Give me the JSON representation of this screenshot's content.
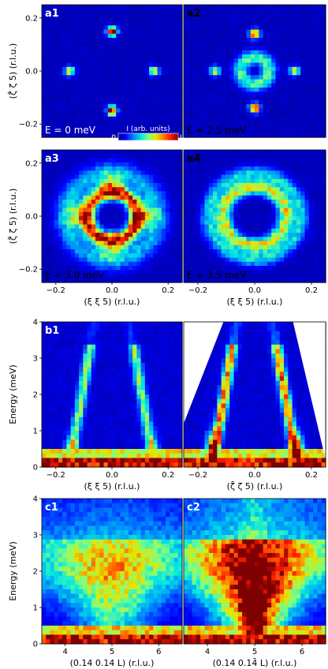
{
  "colors": {
    "cmap": [
      "#00007f",
      "#0000ff",
      "#0080ff",
      "#00e5e5",
      "#7fff7f",
      "#e5e500",
      "#ff8000",
      "#ff1a00",
      "#7f0000"
    ]
  },
  "colorbar": {
    "title": "I (arb. units)",
    "min_label": "0",
    "max_label": "I",
    "max_sub": "max"
  },
  "chart_data": [
    {
      "id": "a1",
      "type": "heatmap",
      "label": "a1",
      "energy_text": "E = 0 meV",
      "xlabel": "",
      "ylabel": "(ζ̄ ζ 5) (r.l.u.)",
      "xlim": [
        -0.25,
        0.25
      ],
      "ylim": [
        -0.25,
        0.25
      ],
      "xticks": [],
      "yticks": [
        -0.2,
        0.0,
        0.2
      ],
      "features": [
        {
          "x": 0.0,
          "y": 0.15,
          "intensity": 1.0
        },
        {
          "x": 0.0,
          "y": -0.15,
          "intensity": 1.0
        },
        {
          "x": -0.15,
          "y": 0.0,
          "intensity": 0.6
        },
        {
          "x": 0.15,
          "y": 0.0,
          "intensity": 0.6
        }
      ]
    },
    {
      "id": "a2",
      "type": "heatmap",
      "label": "a2",
      "energy_text": "E = 2.5 meV",
      "xlabel": "",
      "ylabel": "",
      "xlim": [
        -0.25,
        0.25
      ],
      "ylim": [
        -0.25,
        0.25
      ],
      "xticks": [],
      "yticks": [],
      "features": [
        {
          "x": 0.0,
          "y": 0.14,
          "intensity": 0.9
        },
        {
          "x": 0.0,
          "y": -0.14,
          "intensity": 0.9
        },
        {
          "x": -0.14,
          "y": 0.0,
          "intensity": 0.6
        },
        {
          "x": 0.14,
          "y": 0.0,
          "intensity": 0.6
        },
        {
          "ring": 0.05,
          "intensity": 0.4
        }
      ]
    },
    {
      "id": "a3",
      "type": "heatmap",
      "label": "a3",
      "energy_text": "E = 3.0 meV",
      "xlabel": "(ξ ξ 5) (r.l.u.)",
      "ylabel": "(ζ̄ ζ 5) (r.l.u.)",
      "xlim": [
        -0.25,
        0.25
      ],
      "ylim": [
        -0.25,
        0.25
      ],
      "xticks": [
        -0.2,
        0.0,
        0.2
      ],
      "yticks": [
        -0.2,
        0.0,
        0.2
      ],
      "features": [
        {
          "ring": 0.09,
          "intensity": 0.8
        }
      ]
    },
    {
      "id": "a4",
      "type": "heatmap",
      "label": "a4",
      "energy_text": "E = 3.5 meV",
      "xlabel": "(ξ ξ 5) (r.l.u.)",
      "ylabel": "",
      "xlim": [
        -0.25,
        0.25
      ],
      "ylim": [
        -0.25,
        0.25
      ],
      "xticks": [
        -0.2,
        0.0,
        0.2
      ],
      "yticks": [],
      "features": [
        {
          "ring": 0.11,
          "intensity": 0.55
        }
      ]
    },
    {
      "id": "b1",
      "type": "heatmap",
      "label": "b1",
      "xlabel": "(ξ ξ 5) (r.l.u.)",
      "ylabel": "Energy (meV)",
      "xlim": [
        -0.25,
        0.25
      ],
      "ylim": [
        0,
        4
      ],
      "xticks": [
        -0.2,
        0.0,
        0.2
      ],
      "yticks": [
        0,
        1,
        2,
        3,
        4
      ],
      "dispersion": {
        "branches_x0": [
          -0.15,
          0.15
        ],
        "top_energy": 3.2,
        "top_offset": 0.07
      }
    },
    {
      "id": "b2",
      "type": "heatmap",
      "label": "b2",
      "xlabel": "(ζ̄ ζ 5) (r.l.u.)",
      "ylabel": "",
      "xlim": [
        -0.25,
        0.25
      ],
      "ylim": [
        0,
        4
      ],
      "xticks": [
        -0.2,
        0.0,
        0.2
      ],
      "yticks": [],
      "dispersion": {
        "branches_x0": [
          -0.15,
          0.15
        ],
        "top_energy": 3.2,
        "top_offset": 0.07
      }
    },
    {
      "id": "c1",
      "type": "heatmap",
      "label": "c1",
      "xlabel": "(0.14 0.14 L) (r.l.u.)",
      "ylabel": "Energy (meV)",
      "xlim": [
        3.5,
        6.5
      ],
      "ylim": [
        0,
        4
      ],
      "xticks": [
        4,
        5,
        6
      ],
      "yticks": [
        0,
        1,
        2,
        3,
        4
      ],
      "continuum": {
        "center_L": 5.0,
        "max_energy": 2.5,
        "intensity": 0.45
      }
    },
    {
      "id": "c2",
      "type": "heatmap",
      "label": "c2",
      "xlabel": "(0.14 0.14̄ L) (r.l.u.)",
      "ylabel": "",
      "xlim": [
        3.5,
        6.5
      ],
      "ylim": [
        0,
        4
      ],
      "xticks": [
        4,
        5,
        6
      ],
      "yticks": [],
      "continuum": {
        "center_L": 5.0,
        "max_energy": 2.5,
        "intensity": 0.85
      }
    }
  ]
}
